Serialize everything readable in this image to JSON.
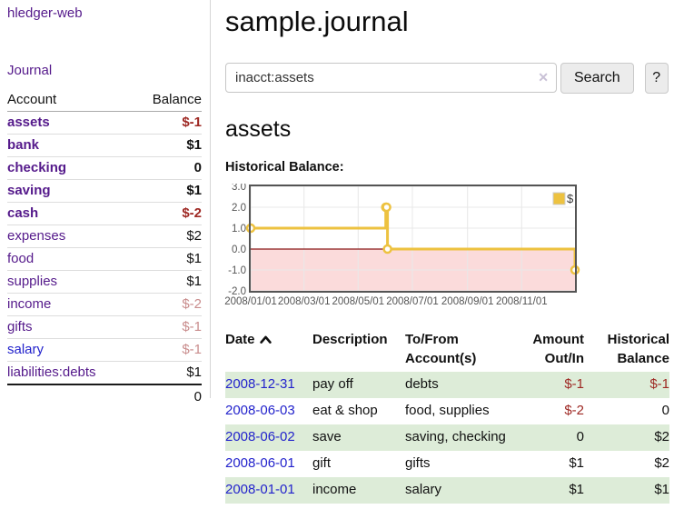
{
  "sidebar": {
    "app_title": "hledger-web",
    "journal_label": "Journal",
    "accounts_header": {
      "account": "Account",
      "balance": "Balance"
    },
    "accounts": [
      {
        "label": "assets",
        "balance": "$-1",
        "depth": 1,
        "bold": true,
        "balance_style": "negative-strong",
        "link_style": "purple"
      },
      {
        "label": "bank",
        "balance": "$1",
        "depth": 2,
        "bold": true,
        "balance_style": "normal",
        "link_style": "purple"
      },
      {
        "label": "checking",
        "balance": "0",
        "depth": 3,
        "bold": true,
        "balance_style": "normal",
        "link_style": "purple"
      },
      {
        "label": "saving",
        "balance": "$1",
        "depth": 3,
        "bold": true,
        "balance_style": "normal",
        "link_style": "purple"
      },
      {
        "label": "cash",
        "balance": "$-2",
        "depth": 2,
        "bold": true,
        "balance_style": "negative-strong",
        "link_style": "purple"
      },
      {
        "label": "expenses",
        "balance": "$2",
        "depth": 1,
        "bold": false,
        "balance_style": "normal",
        "link_style": "purple"
      },
      {
        "label": "food",
        "balance": "$1",
        "depth": 2,
        "bold": false,
        "balance_style": "normal",
        "link_style": "purple"
      },
      {
        "label": "supplies",
        "balance": "$1",
        "depth": 2,
        "bold": false,
        "balance_style": "normal",
        "link_style": "purple"
      },
      {
        "label": "income",
        "balance": "$-2",
        "depth": 1,
        "bold": false,
        "balance_style": "negative-faint",
        "link_style": "purple"
      },
      {
        "label": "gifts",
        "balance": "$-1",
        "depth": 2,
        "bold": false,
        "balance_style": "negative-faint",
        "link_style": "purple"
      },
      {
        "label": "salary",
        "balance": "$-1",
        "depth": 2,
        "bold": false,
        "balance_style": "negative-faint",
        "link_style": "blue"
      },
      {
        "label": "liabilities:debts",
        "balance": "$1",
        "depth": 1,
        "bold": false,
        "balance_style": "normal",
        "link_style": "purple"
      }
    ],
    "total": "0"
  },
  "main": {
    "title": "sample.journal",
    "search": {
      "query": "inacct:assets",
      "clear_icon": "✕",
      "button_label": "Search",
      "help_label": "?"
    },
    "account_heading": "assets"
  },
  "chart_data": {
    "type": "line",
    "step": true,
    "title": "Historical Balance:",
    "x_range": [
      "2008-01-01",
      "2008-12-31"
    ],
    "ylim": [
      -2,
      3
    ],
    "x_ticks": [
      "2008/01/01",
      "2008/03/01",
      "2008/05/01",
      "2008/07/01",
      "2008/09/01",
      "2008/11/01"
    ],
    "y_ticks": [
      3,
      2,
      1,
      0,
      -1,
      -2
    ],
    "series": [
      {
        "name": "$",
        "color": "#edc240",
        "points": [
          [
            "2008-01-01",
            1
          ],
          [
            "2008-06-01",
            2
          ],
          [
            "2008-06-02",
            2
          ],
          [
            "2008-06-03",
            0
          ],
          [
            "2008-12-31",
            -1
          ]
        ]
      }
    ],
    "legend_position": "top-right",
    "grid": true,
    "grid_color": "#e8e8e8",
    "border_color": "#545454",
    "tick_label_color": "#545454",
    "negative_region_fill": "#fbdbdb",
    "zero_line_color": "#8b1a1a"
  },
  "transactions": {
    "headers": [
      {
        "line1": "Date",
        "line2": "",
        "align": "left",
        "sort": "ascending"
      },
      {
        "line1": "Description",
        "line2": "",
        "align": "left"
      },
      {
        "line1": "To/From",
        "line2": "Account(s)",
        "align": "left"
      },
      {
        "line1": "Amount",
        "line2": "Out/In",
        "align": "right"
      },
      {
        "line1": "Historical",
        "line2": "Balance",
        "align": "right"
      }
    ],
    "rows": [
      {
        "date": "2008-12-31",
        "description": "pay off",
        "accounts": "debts",
        "amount": "$-1",
        "amount_negative": true,
        "balance": "$-1",
        "balance_negative": true
      },
      {
        "date": "2008-06-03",
        "description": "eat & shop",
        "accounts": "food, supplies",
        "amount": "$-2",
        "amount_negative": true,
        "balance": "0",
        "balance_negative": false
      },
      {
        "date": "2008-06-02",
        "description": "save",
        "accounts": "saving, checking",
        "amount": "0",
        "amount_negative": false,
        "balance": "$2",
        "balance_negative": false
      },
      {
        "date": "2008-06-01",
        "description": "gift",
        "accounts": "gifts",
        "amount": "$1",
        "amount_negative": false,
        "balance": "$2",
        "balance_negative": false
      },
      {
        "date": "2008-01-01",
        "description": "income",
        "accounts": "salary",
        "amount": "$1",
        "amount_negative": false,
        "balance": "$1",
        "balance_negative": false
      }
    ]
  },
  "colors": {
    "link_purple": "#551a8b",
    "link_blue": "#2323cc",
    "negative_strong": "#9e2823",
    "negative_faint": "#c98d8d",
    "row_green": "#ddecd8",
    "series_yellow": "#edc240"
  }
}
